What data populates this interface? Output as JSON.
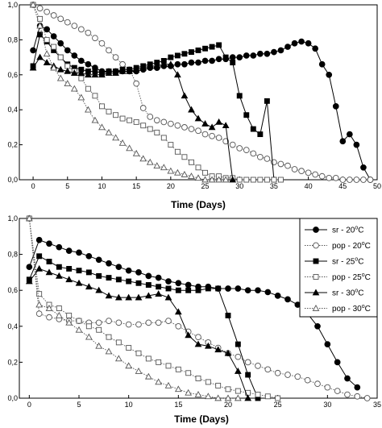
{
  "chart_data": [
    {
      "type": "line",
      "xlabel": "Time (Days)",
      "ylabel": "",
      "xlim": [
        -2,
        50
      ],
      "ylim": [
        0,
        1.0
      ],
      "xticks": [
        0,
        5,
        10,
        15,
        20,
        25,
        30,
        35,
        40,
        45,
        50
      ],
      "xtick_labels": [
        "0",
        "5",
        "10",
        "15",
        "20",
        "25",
        "30",
        "35",
        "40",
        "45",
        "50"
      ],
      "yticks": [
        0,
        0.2,
        0.4,
        0.6,
        0.8,
        1.0
      ],
      "ytick_labels": [
        "0,0",
        "0,2",
        "0,4",
        "0,6",
        "0,8",
        "1,0"
      ],
      "grid": false,
      "series": [
        {
          "name": "sr - 20°C",
          "marker": "circle-filled",
          "line": "solid",
          "x": [
            0,
            1,
            2,
            3,
            4,
            5,
            6,
            7,
            8,
            9,
            10,
            11,
            12,
            13,
            14,
            15,
            16,
            17,
            18,
            19,
            20,
            21,
            22,
            23,
            24,
            25,
            26,
            27,
            28,
            29,
            30,
            31,
            32,
            33,
            34,
            35,
            36,
            37,
            38,
            39,
            40,
            41,
            42,
            43,
            44,
            45,
            46,
            47,
            48,
            49
          ],
          "y": [
            0.74,
            0.88,
            0.86,
            0.82,
            0.78,
            0.74,
            0.71,
            0.68,
            0.66,
            0.64,
            0.62,
            0.62,
            0.62,
            0.62,
            0.62,
            0.62,
            0.63,
            0.64,
            0.64,
            0.65,
            0.65,
            0.66,
            0.66,
            0.67,
            0.67,
            0.68,
            0.68,
            0.69,
            0.69,
            0.7,
            0.7,
            0.71,
            0.71,
            0.72,
            0.72,
            0.73,
            0.74,
            0.76,
            0.78,
            0.79,
            0.78,
            0.75,
            0.66,
            0.6,
            0.42,
            0.22,
            0.26,
            0.2,
            0.07,
            0.0
          ]
        },
        {
          "name": "pop - 20°C",
          "marker": "circle-open",
          "line": "dotted",
          "x": [
            0,
            1,
            2,
            3,
            4,
            5,
            6,
            7,
            8,
            9,
            10,
            11,
            12,
            13,
            14,
            15,
            16,
            17,
            18,
            19,
            20,
            21,
            22,
            23,
            24,
            25,
            26,
            27,
            28,
            29,
            30,
            31,
            32,
            33,
            34,
            35,
            36,
            37,
            38,
            39,
            40,
            41,
            42,
            43,
            44,
            45,
            46,
            47,
            48,
            49
          ],
          "y": [
            1.0,
            0.98,
            0.96,
            0.94,
            0.92,
            0.9,
            0.88,
            0.86,
            0.84,
            0.81,
            0.78,
            0.74,
            0.7,
            0.66,
            0.63,
            0.55,
            0.41,
            0.36,
            0.34,
            0.33,
            0.32,
            0.31,
            0.3,
            0.29,
            0.28,
            0.26,
            0.25,
            0.24,
            0.22,
            0.2,
            0.18,
            0.17,
            0.15,
            0.13,
            0.12,
            0.1,
            0.09,
            0.08,
            0.06,
            0.05,
            0.04,
            0.03,
            0.02,
            0.01,
            0.01,
            0.0,
            0.0,
            0.0,
            0.0,
            0.0
          ]
        },
        {
          "name": "sr - 25°C",
          "marker": "square-filled",
          "line": "solid",
          "x": [
            0,
            1,
            2,
            3,
            4,
            5,
            6,
            7,
            8,
            9,
            10,
            11,
            12,
            13,
            14,
            15,
            16,
            17,
            18,
            19,
            20,
            21,
            22,
            23,
            24,
            25,
            26,
            27,
            28,
            29,
            30,
            31,
            32,
            33,
            34,
            35
          ],
          "y": [
            0.65,
            0.83,
            0.79,
            0.74,
            0.7,
            0.66,
            0.64,
            0.63,
            0.62,
            0.62,
            0.61,
            0.62,
            0.62,
            0.63,
            0.63,
            0.64,
            0.65,
            0.66,
            0.67,
            0.68,
            0.7,
            0.71,
            0.72,
            0.73,
            0.74,
            0.75,
            0.76,
            0.77,
            0.7,
            0.67,
            0.48,
            0.37,
            0.29,
            0.26,
            0.45,
            0.0
          ]
        },
        {
          "name": "pop - 25°C",
          "marker": "square-open",
          "line": "dotted",
          "x": [
            0,
            1,
            2,
            3,
            4,
            5,
            6,
            7,
            8,
            9,
            10,
            11,
            12,
            13,
            14,
            15,
            16,
            17,
            18,
            19,
            20,
            21,
            22,
            23,
            24,
            25,
            26,
            27,
            28,
            29,
            30,
            31,
            32,
            33,
            34,
            35,
            36
          ],
          "y": [
            1.0,
            0.92,
            0.8,
            0.76,
            0.7,
            0.65,
            0.62,
            0.58,
            0.52,
            0.48,
            0.42,
            0.39,
            0.37,
            0.35,
            0.34,
            0.33,
            0.31,
            0.29,
            0.27,
            0.24,
            0.2,
            0.16,
            0.13,
            0.1,
            0.07,
            0.04,
            0.02,
            0.02,
            0.01,
            0.01,
            0.0,
            0.0,
            0.0,
            0.0,
            0.0,
            0.0,
            0.0
          ]
        },
        {
          "name": "sr - 30°C",
          "marker": "triangle-filled",
          "line": "solid",
          "x": [
            0,
            1,
            2,
            3,
            4,
            5,
            6,
            7,
            8,
            9,
            10,
            11,
            12,
            13,
            14,
            15,
            16,
            17,
            18,
            19,
            20,
            21,
            22,
            23,
            24,
            25,
            26,
            27,
            28,
            29
          ],
          "y": [
            0.64,
            0.7,
            0.67,
            0.65,
            0.63,
            0.62,
            0.61,
            0.61,
            0.6,
            0.6,
            0.6,
            0.61,
            0.61,
            0.62,
            0.62,
            0.63,
            0.64,
            0.65,
            0.65,
            0.66,
            0.66,
            0.6,
            0.48,
            0.4,
            0.35,
            0.32,
            0.3,
            0.33,
            0.31,
            0.0
          ]
        },
        {
          "name": "pop - 30°C",
          "marker": "triangle-open",
          "line": "dotted",
          "x": [
            0,
            1,
            2,
            3,
            4,
            5,
            6,
            7,
            8,
            9,
            10,
            11,
            12,
            13,
            14,
            15,
            16,
            17,
            18,
            19,
            20,
            21,
            22,
            23,
            24,
            25,
            26,
            27,
            28
          ],
          "y": [
            1.0,
            0.88,
            0.72,
            0.64,
            0.58,
            0.55,
            0.52,
            0.47,
            0.4,
            0.34,
            0.3,
            0.27,
            0.24,
            0.21,
            0.18,
            0.15,
            0.12,
            0.1,
            0.08,
            0.07,
            0.05,
            0.04,
            0.03,
            0.02,
            0.01,
            0.0,
            0.0,
            0.0,
            0.0
          ]
        }
      ]
    },
    {
      "type": "line",
      "xlabel": "Time (Days)",
      "ylabel": "",
      "xlim": [
        -1,
        35
      ],
      "ylim": [
        0,
        1.0
      ],
      "xticks": [
        0,
        5,
        10,
        15,
        20,
        25,
        30,
        35
      ],
      "xtick_labels": [
        "0",
        "5",
        "10",
        "15",
        "20",
        "25",
        "30",
        "35"
      ],
      "yticks": [
        0,
        0.2,
        0.4,
        0.6,
        0.8,
        1.0
      ],
      "ytick_labels": [
        "0,0",
        "0,2",
        "0,4",
        "0,6",
        "0,8",
        "1,0"
      ],
      "grid": false,
      "legend": {
        "placement": "top-right"
      },
      "series": [
        {
          "name": "sr - 20°C",
          "legend_label": "sr - 20",
          "marker": "circle-filled",
          "line": "solid",
          "x": [
            0,
            1,
            2,
            3,
            4,
            5,
            6,
            7,
            8,
            9,
            10,
            11,
            12,
            13,
            14,
            15,
            16,
            17,
            18,
            19,
            20,
            21,
            22,
            23,
            24,
            25,
            26,
            27,
            28,
            29,
            30,
            31,
            32,
            33
          ],
          "y": [
            0.73,
            0.88,
            0.86,
            0.84,
            0.82,
            0.81,
            0.79,
            0.77,
            0.75,
            0.73,
            0.71,
            0.7,
            0.68,
            0.67,
            0.65,
            0.64,
            0.63,
            0.62,
            0.62,
            0.61,
            0.61,
            0.61,
            0.6,
            0.6,
            0.59,
            0.57,
            0.55,
            0.52,
            0.47,
            0.4,
            0.3,
            0.2,
            0.11,
            0.06
          ]
        },
        {
          "name": "pop - 20°C",
          "legend_label": "pop - 20",
          "marker": "circle-open",
          "line": "dotted",
          "x": [
            0,
            1,
            2,
            3,
            4,
            5,
            6,
            7,
            8,
            9,
            10,
            11,
            12,
            13,
            14,
            15,
            16,
            17,
            18,
            19,
            20,
            21,
            22,
            23,
            24,
            25,
            26,
            27,
            28,
            29,
            30,
            31,
            32,
            33,
            34
          ],
          "y": [
            1.0,
            0.47,
            0.45,
            0.44,
            0.43,
            0.43,
            0.42,
            0.42,
            0.43,
            0.42,
            0.41,
            0.41,
            0.42,
            0.42,
            0.43,
            0.4,
            0.37,
            0.34,
            0.31,
            0.28,
            0.25,
            0.23,
            0.2,
            0.18,
            0.16,
            0.14,
            0.13,
            0.12,
            0.1,
            0.08,
            0.06,
            0.04,
            0.02,
            0.01,
            0.0
          ]
        },
        {
          "name": "sr - 25°C",
          "legend_label": "sr - 25",
          "marker": "square-filled",
          "line": "solid",
          "x": [
            0,
            1,
            2,
            3,
            4,
            5,
            6,
            7,
            8,
            9,
            10,
            11,
            12,
            13,
            14,
            15,
            16,
            17,
            18,
            19,
            20,
            21,
            22,
            23
          ],
          "y": [
            0.66,
            0.79,
            0.76,
            0.73,
            0.72,
            0.71,
            0.7,
            0.68,
            0.67,
            0.66,
            0.65,
            0.64,
            0.63,
            0.62,
            0.61,
            0.6,
            0.6,
            0.6,
            0.61,
            0.61,
            0.46,
            0.3,
            0.13,
            0.0
          ]
        },
        {
          "name": "pop - 25°C",
          "legend_label": "pop - 25",
          "marker": "square-open",
          "line": "dotted",
          "x": [
            0,
            1,
            2,
            3,
            4,
            5,
            6,
            7,
            8,
            9,
            10,
            11,
            12,
            13,
            14,
            15,
            16,
            17,
            18,
            19,
            20,
            21,
            22,
            23,
            24,
            25
          ],
          "y": [
            1.0,
            0.58,
            0.52,
            0.5,
            0.46,
            0.43,
            0.4,
            0.38,
            0.34,
            0.31,
            0.28,
            0.25,
            0.22,
            0.2,
            0.18,
            0.16,
            0.14,
            0.11,
            0.09,
            0.07,
            0.05,
            0.04,
            0.03,
            0.02,
            0.01,
            0.0
          ]
        },
        {
          "name": "sr - 30°C",
          "legend_label": "sr - 30",
          "marker": "triangle-filled",
          "line": "solid",
          "x": [
            0,
            1,
            2,
            3,
            4,
            5,
            6,
            7,
            8,
            9,
            10,
            11,
            12,
            13,
            14,
            15,
            16,
            17,
            18,
            19,
            20,
            21,
            22
          ],
          "y": [
            0.65,
            0.72,
            0.7,
            0.68,
            0.66,
            0.64,
            0.62,
            0.6,
            0.57,
            0.56,
            0.56,
            0.56,
            0.57,
            0.58,
            0.56,
            0.48,
            0.35,
            0.3,
            0.29,
            0.27,
            0.25,
            0.15,
            0.0
          ]
        },
        {
          "name": "pop - 30°C",
          "legend_label": "pop - 30",
          "marker": "triangle-open",
          "line": "dotted",
          "x": [
            0,
            1,
            2,
            3,
            4,
            5,
            6,
            7,
            8,
            9,
            10,
            11,
            12,
            13,
            14,
            15,
            16,
            17,
            18,
            19,
            20,
            21
          ],
          "y": [
            1.0,
            0.52,
            0.5,
            0.46,
            0.42,
            0.38,
            0.34,
            0.29,
            0.26,
            0.22,
            0.18,
            0.15,
            0.12,
            0.09,
            0.07,
            0.05,
            0.03,
            0.02,
            0.01,
            0.0,
            0.0,
            0.0
          ]
        }
      ]
    }
  ],
  "legend": {
    "degree_unit": "o",
    "unit_letter": "C"
  }
}
